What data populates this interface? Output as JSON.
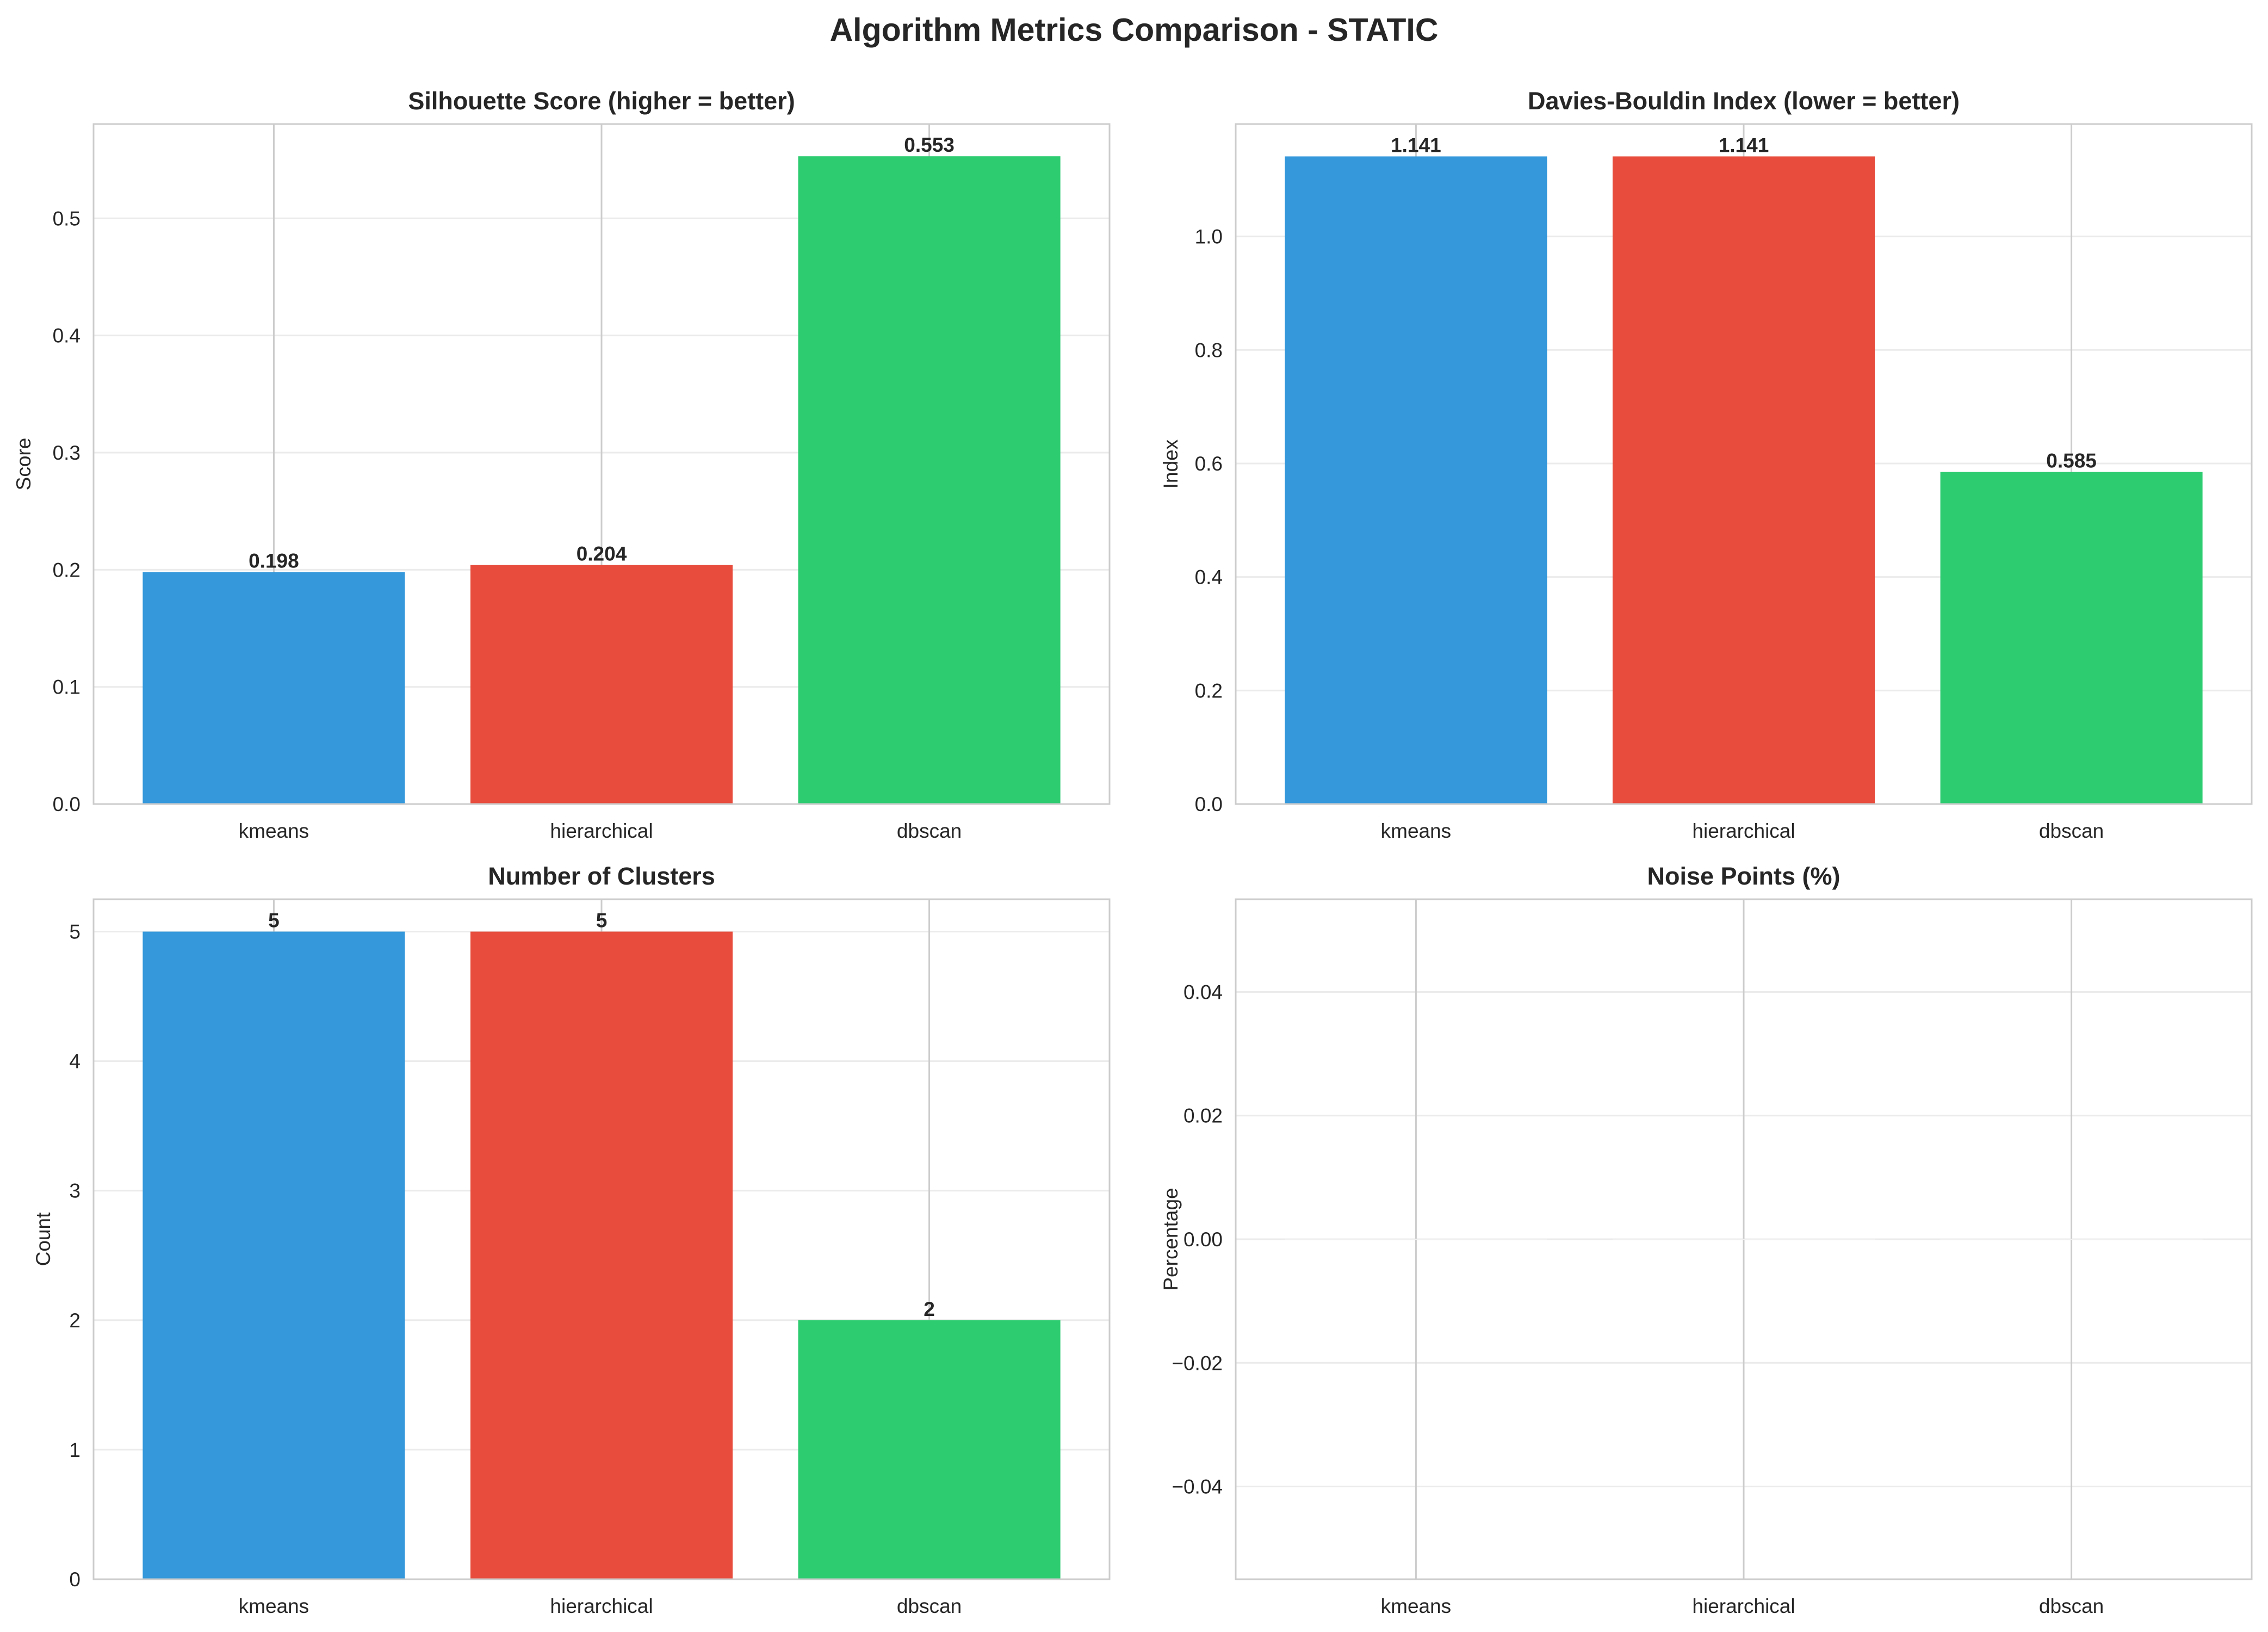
{
  "suptitle": "Algorithm Metrics Comparison - STATIC",
  "colors": {
    "kmeans": "#3498db",
    "hierarchical": "#e74c3c",
    "dbscan": "#2ecc71",
    "grid": "#ebebeb",
    "axis_frame": "#cccccc",
    "text": "#262626"
  },
  "chart_data": [
    {
      "type": "bar",
      "title": "Silhouette Score (higher = better)",
      "ylabel": "Score",
      "xlabel": "",
      "categories": [
        "kmeans",
        "hierarchical",
        "dbscan"
      ],
      "values": [
        0.198,
        0.204,
        0.553
      ],
      "value_labels": [
        "0.198",
        "0.204",
        "0.553"
      ],
      "ylim": [
        0,
        0.5805
      ],
      "yticks": [
        0.0,
        0.1,
        0.2,
        0.3,
        0.4,
        0.5
      ],
      "ytick_labels": [
        "0.0",
        "0.1",
        "0.2",
        "0.3",
        "0.4",
        "0.5"
      ],
      "grid": true
    },
    {
      "type": "bar",
      "title": "Davies-Bouldin Index (lower = better)",
      "ylabel": "Index",
      "xlabel": "",
      "categories": [
        "kmeans",
        "hierarchical",
        "dbscan"
      ],
      "values": [
        1.141,
        1.141,
        0.585
      ],
      "value_labels": [
        "1.141",
        "1.141",
        "0.585"
      ],
      "ylim": [
        0,
        1.198
      ],
      "yticks": [
        0.0,
        0.2,
        0.4,
        0.6,
        0.8,
        1.0
      ],
      "ytick_labels": [
        "0.0",
        "0.2",
        "0.4",
        "0.6",
        "0.8",
        "1.0"
      ],
      "grid": true
    },
    {
      "type": "bar",
      "title": "Number of Clusters",
      "ylabel": "Count",
      "xlabel": "",
      "categories": [
        "kmeans",
        "hierarchical",
        "dbscan"
      ],
      "values": [
        5,
        5,
        2
      ],
      "value_labels": [
        "5",
        "5",
        "2"
      ],
      "ylim": [
        0,
        5.25
      ],
      "yticks": [
        0,
        1,
        2,
        3,
        4,
        5
      ],
      "ytick_labels": [
        "0",
        "1",
        "2",
        "3",
        "4",
        "5"
      ],
      "grid": true
    },
    {
      "type": "bar",
      "title": "Noise Points (%)",
      "ylabel": "Percentage",
      "xlabel": "",
      "categories": [
        "kmeans",
        "hierarchical",
        "dbscan"
      ],
      "values": [
        0,
        0,
        0
      ],
      "value_labels": [],
      "ylim": [
        -0.055,
        0.055
      ],
      "yticks": [
        -0.04,
        -0.02,
        0.0,
        0.02,
        0.04
      ],
      "ytick_labels": [
        "−0.04",
        "−0.02",
        "0.00",
        "0.02",
        "0.04"
      ],
      "grid": true
    }
  ]
}
